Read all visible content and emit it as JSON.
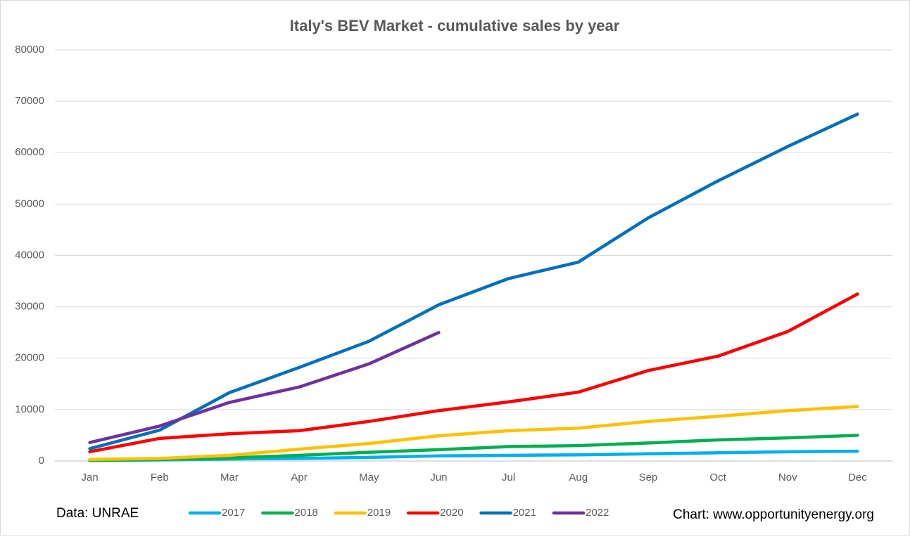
{
  "chart_data": {
    "type": "line",
    "title": "Italy's BEV Market - cumulative sales by year",
    "annotations": [
      "Data: UNRAE",
      "Chart: www.opportunityenergy.org"
    ],
    "categories": [
      "Jan",
      "Feb",
      "Mar",
      "Apr",
      "May",
      "Jun",
      "Jul",
      "Aug",
      "Sep",
      "Oct",
      "Nov",
      "Dec"
    ],
    "series": [
      {
        "name": "2017",
        "color": "#00b0f0",
        "values": [
          100,
          200,
          400,
          500,
          700,
          1000,
          1100,
          1200,
          1400,
          1600,
          1800,
          1900
        ]
      },
      {
        "name": "2018",
        "color": "#00b050",
        "values": [
          100,
          300,
          600,
          1100,
          1700,
          2200,
          2800,
          3000,
          3500,
          4100,
          4500,
          5000
        ]
      },
      {
        "name": "2019",
        "color": "#ffc000",
        "values": [
          300,
          500,
          1100,
          2300,
          3400,
          4900,
          5900,
          6400,
          7700,
          8700,
          9800,
          10600
        ]
      },
      {
        "name": "2020",
        "color": "#ff0000",
        "values": [
          1800,
          4400,
          5300,
          5900,
          7700,
          9800,
          11500,
          13400,
          17600,
          20400,
          25200,
          32500
        ]
      },
      {
        "name": "2021",
        "color": "#0070c0",
        "values": [
          2400,
          6000,
          13300,
          18200,
          23300,
          30400,
          35500,
          38700,
          47300,
          54500,
          61200,
          67500
        ]
      },
      {
        "name": "2022",
        "color": "#7030a0",
        "values": [
          3600,
          6800,
          11400,
          14400,
          18900,
          25000,
          null,
          null,
          null,
          null,
          null,
          null
        ]
      }
    ],
    "ylim": [
      0,
      80000
    ],
    "yticks": [
      0,
      10000,
      20000,
      30000,
      40000,
      50000,
      60000,
      70000,
      80000
    ],
    "grid": true,
    "legend": "bottom"
  }
}
